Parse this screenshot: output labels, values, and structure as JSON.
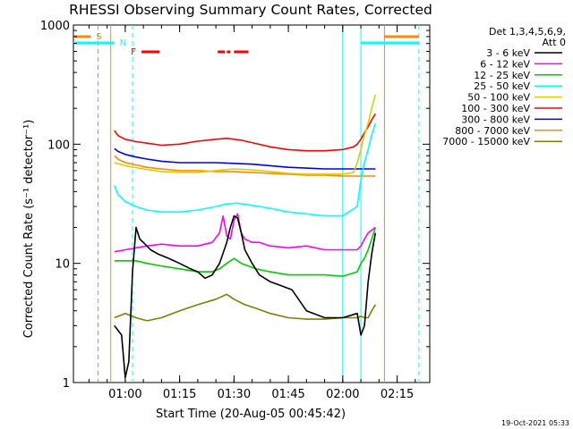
{
  "chart_data": {
    "type": "line",
    "title": "RHESSI Observing Summary Count Rates, Corrected",
    "xlabel": "Start Time (20-Aug-05 00:45:42)",
    "ylabel": "Corrected Count Rate (s⁻¹ detector⁻¹)",
    "yscale": "log",
    "ylim": [
      1,
      1000
    ],
    "xlim_minutes": [
      45.7,
      144
    ],
    "x_ticks": [
      {
        "minute": 60,
        "label": "01:00"
      },
      {
        "minute": 75,
        "label": "01:15"
      },
      {
        "minute": 90,
        "label": "01:30"
      },
      {
        "minute": 105,
        "label": "01:45"
      },
      {
        "minute": 120,
        "label": "02:00"
      },
      {
        "minute": 135,
        "label": "02:15"
      }
    ],
    "y_ticks": [
      {
        "value": 1,
        "label": "1"
      },
      {
        "value": 10,
        "label": "10"
      },
      {
        "value": 100,
        "label": "100"
      },
      {
        "value": 1000,
        "label": "1000"
      }
    ],
    "legend_header": [
      "Det 1,3,4,5,6,9,",
      "Att 0"
    ],
    "legend_position": "right",
    "series": [
      {
        "name": "3 - 6 keV",
        "color": "#000000",
        "x": [
          57,
          59,
          60,
          61,
          62,
          63,
          64,
          65,
          67,
          69,
          72,
          75,
          78,
          80,
          82,
          84,
          86,
          88,
          89,
          90,
          91,
          92,
          93,
          95,
          97,
          100,
          103,
          106,
          110,
          115,
          120,
          124,
          125,
          126,
          127,
          128,
          129
        ],
        "y": [
          3.0,
          2.5,
          1.1,
          1.5,
          8.5,
          20,
          16,
          15,
          13,
          12,
          11,
          10,
          9,
          8.5,
          7.5,
          8,
          10,
          15,
          20,
          25,
          24,
          18,
          13,
          10,
          8,
          7,
          6.5,
          6,
          4,
          3.5,
          3.5,
          3.8,
          2.5,
          3,
          7,
          12,
          18
        ]
      },
      {
        "name": "6 - 12 keV",
        "color": "#ff00ff",
        "x": [
          57,
          60,
          63,
          66,
          70,
          75,
          80,
          84,
          86,
          87,
          88,
          89,
          90,
          91,
          92,
          93,
          94,
          95,
          97,
          100,
          105,
          110,
          115,
          120,
          124,
          125,
          126,
          127,
          128,
          129
        ],
        "y": [
          12.5,
          13,
          13.5,
          14,
          14.5,
          14,
          14,
          15,
          18,
          25,
          17,
          16,
          23,
          26,
          18,
          16,
          15.5,
          15,
          15,
          14,
          13.5,
          14,
          13,
          13,
          13,
          14,
          16,
          18,
          19,
          20
        ]
      },
      {
        "name": "12 - 25 keV",
        "color": "#00cc00",
        "x": [
          57,
          60,
          63,
          66,
          70,
          75,
          80,
          84,
          86,
          88,
          90,
          92,
          94,
          96,
          100,
          105,
          110,
          115,
          120,
          124,
          125,
          126,
          127,
          128,
          129
        ],
        "y": [
          10.5,
          10.5,
          10.5,
          10,
          9.5,
          9,
          8.5,
          8.5,
          9,
          10,
          11,
          10,
          9.5,
          9,
          8.5,
          8,
          8,
          8,
          7.8,
          8.5,
          10,
          11,
          13,
          16,
          20
        ]
      },
      {
        "name": "25 - 50 keV",
        "color": "#00ffff",
        "x": [
          57,
          58,
          60,
          63,
          66,
          70,
          75,
          80,
          85,
          88,
          91,
          94,
          97,
          100,
          105,
          110,
          115,
          120,
          124,
          125,
          126,
          127,
          128,
          129
        ],
        "y": [
          45,
          38,
          33,
          30,
          28,
          27,
          27,
          28,
          30,
          31.5,
          32,
          31,
          30,
          29,
          27,
          26,
          25,
          25,
          30,
          50,
          70,
          90,
          120,
          150
        ]
      },
      {
        "name": "50 - 100 keV",
        "color": "#ddcc00",
        "x": [
          57,
          60,
          65,
          70,
          75,
          80,
          85,
          90,
          95,
          100,
          105,
          110,
          115,
          120,
          123,
          124,
          125,
          126,
          127,
          128,
          129
        ],
        "y": [
          70,
          66,
          62,
          59,
          58,
          58,
          60,
          62,
          61,
          59,
          57,
          56,
          56,
          56,
          58,
          70,
          90,
          120,
          150,
          200,
          260
        ]
      },
      {
        "name": "100 - 300 keV",
        "color": "#ff0000",
        "x": [
          57,
          58,
          60,
          63,
          66,
          70,
          75,
          80,
          85,
          88,
          90,
          92,
          95,
          100,
          105,
          110,
          115,
          120,
          123,
          124,
          125,
          126,
          127,
          128,
          129
        ],
        "y": [
          130,
          118,
          110,
          105,
          102,
          98,
          100,
          106,
          110,
          112,
          110,
          108,
          103,
          95,
          90,
          88,
          88,
          90,
          95,
          100,
          110,
          125,
          140,
          160,
          180
        ]
      },
      {
        "name": "300 - 800 keV",
        "color": "#0000ee",
        "x": [
          57,
          58,
          60,
          63,
          66,
          70,
          75,
          80,
          85,
          90,
          95,
          100,
          105,
          110,
          115,
          120,
          124,
          125,
          126,
          127,
          128,
          129
        ],
        "y": [
          92,
          87,
          82,
          78,
          75,
          72,
          70,
          70,
          70,
          69,
          68,
          66,
          64,
          63,
          62,
          62,
          62,
          62,
          62,
          62,
          62,
          62
        ]
      },
      {
        "name": "800 - 7000 keV",
        "color": "#ff8800",
        "x": [
          57,
          58,
          60,
          63,
          66,
          70,
          75,
          80,
          85,
          90,
          95,
          100,
          105,
          110,
          115,
          120,
          124,
          125,
          126,
          127,
          128,
          129
        ],
        "y": [
          80,
          75,
          70,
          67,
          64,
          62,
          60,
          60,
          59,
          59,
          58,
          57,
          56,
          55,
          55,
          54,
          54,
          54,
          54,
          54,
          54,
          54
        ]
      },
      {
        "name": "7000 - 15000 keV",
        "color": "#808000",
        "x": [
          57,
          60,
          63,
          66,
          70,
          75,
          80,
          85,
          88,
          90,
          93,
          96,
          100,
          105,
          110,
          115,
          120,
          124,
          125,
          126,
          127,
          128,
          129
        ],
        "y": [
          3.5,
          3.8,
          3.5,
          3.3,
          3.5,
          4.0,
          4.5,
          5.0,
          5.5,
          5.0,
          4.5,
          4.2,
          3.8,
          3.5,
          3.4,
          3.4,
          3.5,
          3.5,
          3.6,
          3.5,
          3.5,
          4.0,
          4.5
        ]
      }
    ],
    "flag_bars": [
      {
        "label": "S",
        "color": "#ff8800",
        "x_start": 45.7,
        "x_end": 50.5,
        "x2_start": 131.5,
        "x2_end": 141
      },
      {
        "label": "N",
        "color": "#00ffff",
        "x_start": 45.7,
        "x_end": 57,
        "x2_start": 125,
        "x2_end": 141
      },
      {
        "label": "F",
        "color": "#ff0000",
        "segments": [
          [
            64.5,
            69.5
          ],
          [
            85.5,
            87.5
          ],
          [
            88,
            89
          ],
          [
            90,
            94
          ]
        ]
      }
    ],
    "vertical_lines": [
      {
        "minute": 52.5,
        "color": "#ff8800",
        "style": "dashed"
      },
      {
        "minute": 56,
        "color": "#ff8800",
        "style": "solid"
      },
      {
        "minute": 62,
        "color": "#00ffff",
        "style": "dashed"
      },
      {
        "minute": 120,
        "color": "#00ffff",
        "style": "solid"
      },
      {
        "minute": 125,
        "color": "#00ffff",
        "style": "solid"
      },
      {
        "minute": 131.5,
        "color": "#ff8800",
        "style": "solid"
      },
      {
        "minute": 141,
        "color": "#00ffff",
        "style": "dashed"
      }
    ]
  },
  "footer": {
    "timestamp": "19-Oct-2021 05:33"
  }
}
